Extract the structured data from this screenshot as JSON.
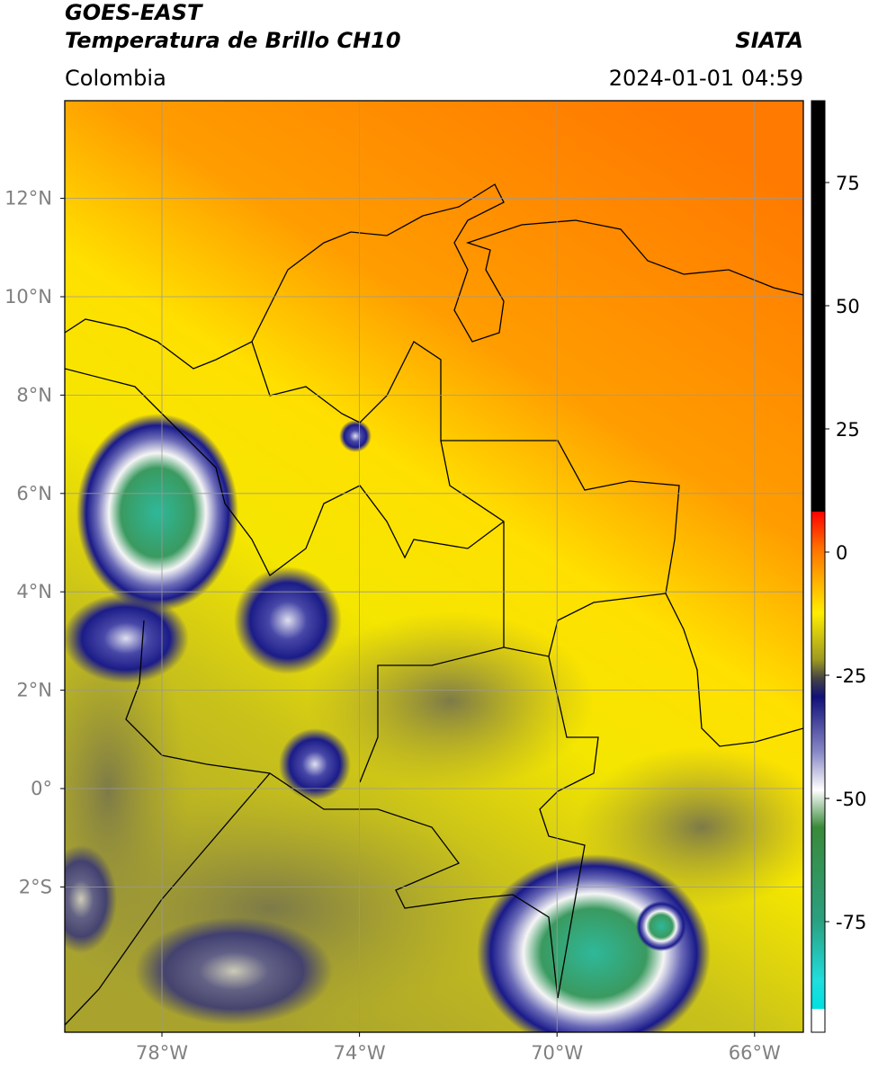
{
  "header": {
    "title": "GOES-EAST",
    "subtitle": "Temperatura de Brillo CH10",
    "region": "Colombia",
    "source": "SIATA",
    "datetime": "2024-01-01 04:59"
  },
  "map": {
    "lon_ticks": [
      {
        "value": -78,
        "label": "78°W"
      },
      {
        "value": -74,
        "label": "74°W"
      },
      {
        "value": -70,
        "label": "70°W"
      },
      {
        "value": -66,
        "label": "66°W"
      }
    ],
    "lat_ticks": [
      {
        "value": 12,
        "label": "12°N"
      },
      {
        "value": 10,
        "label": "10°N"
      },
      {
        "value": 8,
        "label": "8°N"
      },
      {
        "value": 6,
        "label": "6°N"
      },
      {
        "value": 4,
        "label": "4°N"
      },
      {
        "value": 2,
        "label": "2°N"
      },
      {
        "value": 0,
        "label": "0°"
      },
      {
        "value": -2,
        "label": "2°S"
      }
    ]
  },
  "colorbar": {
    "ticks": [
      75,
      50,
      25,
      0,
      -25,
      -50,
      -75
    ]
  }
}
